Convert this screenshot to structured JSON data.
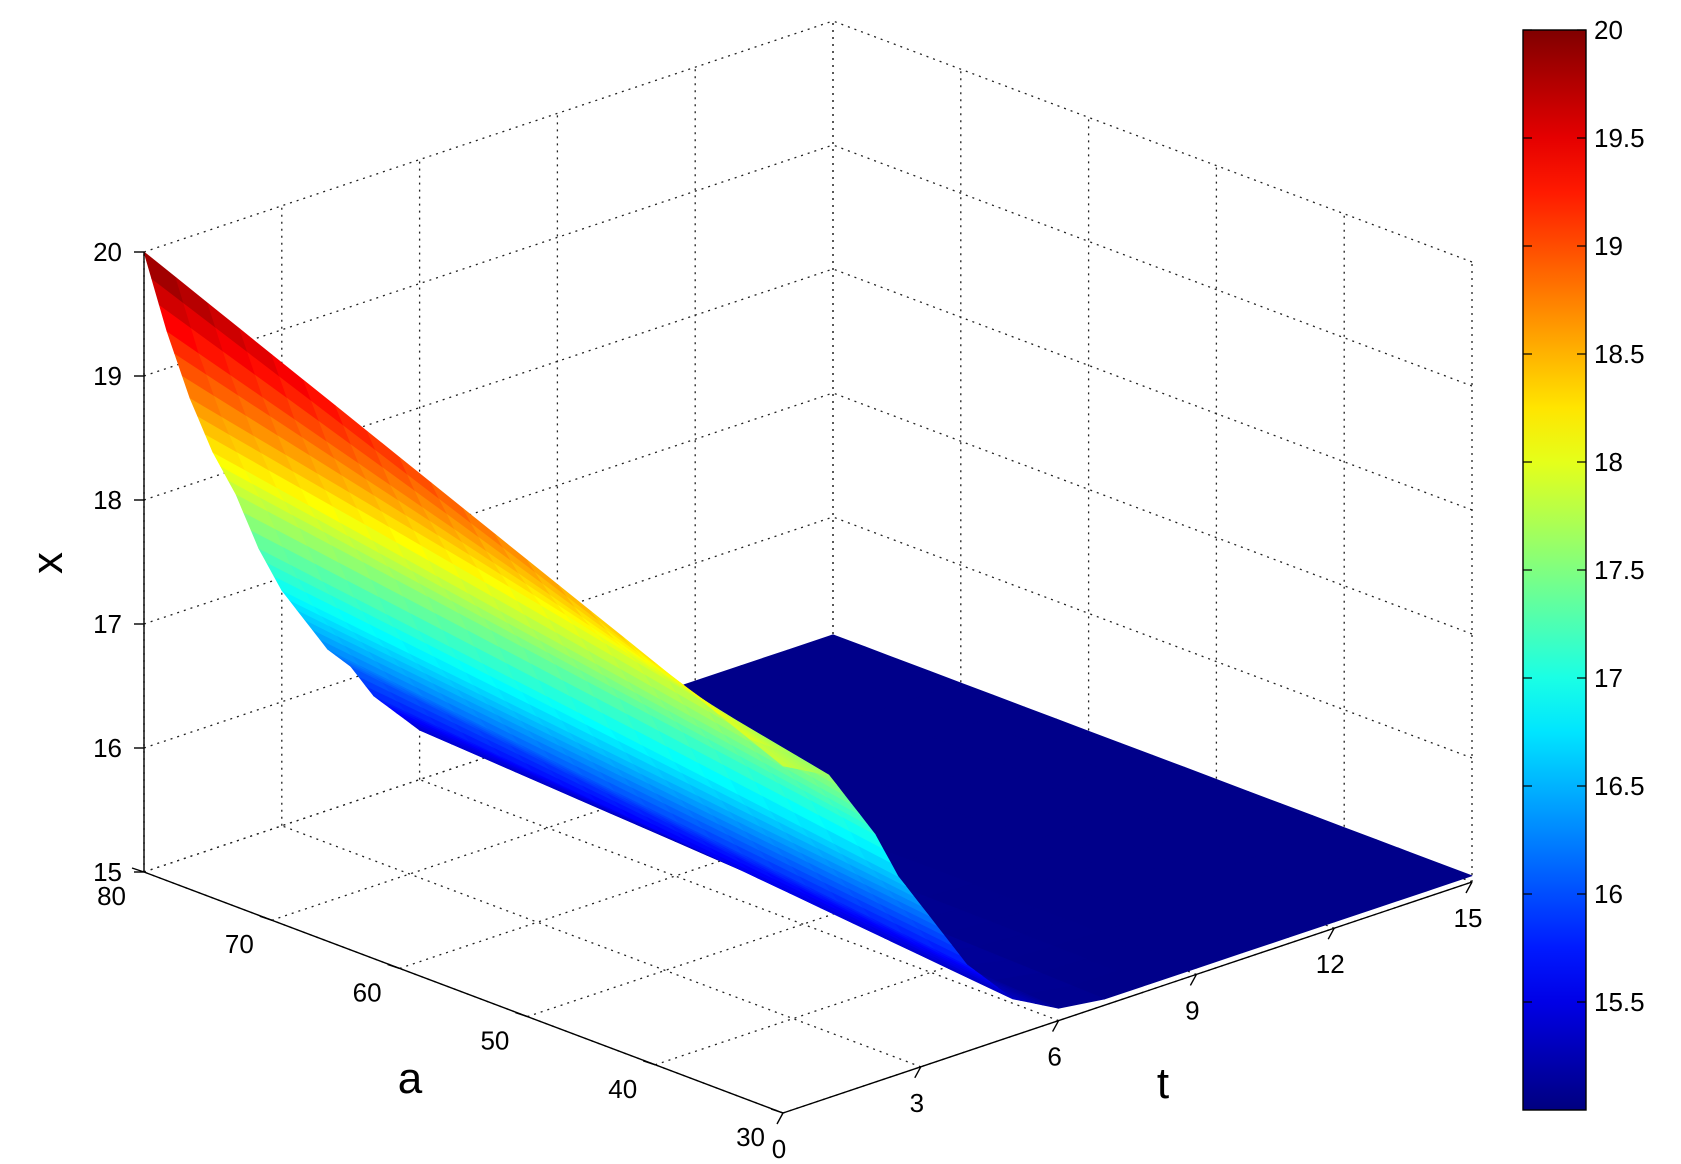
{
  "chart_data": {
    "type": "surface",
    "title": "",
    "xlabel": "a",
    "ylabel": "t",
    "zlabel": "x",
    "xlim": [
      30,
      80
    ],
    "ylim": [
      0,
      15
    ],
    "zlim": [
      15,
      20
    ],
    "x_ticks": [
      "30",
      "40",
      "50",
      "60",
      "70",
      "80"
    ],
    "y_ticks": [
      "0",
      "3",
      "6",
      "9",
      "12",
      "15"
    ],
    "z_ticks": [
      "15",
      "16",
      "17",
      "18",
      "19",
      "20"
    ],
    "grid": true,
    "colormap": "jet",
    "colorbar": {
      "range": [
        15.0,
        20.0
      ],
      "ticks": [
        "15.5",
        "16",
        "16.5",
        "17",
        "17.5",
        "18",
        "18.5",
        "19",
        "19.5",
        "20"
      ]
    },
    "surface": {
      "a_values": [
        30,
        80
      ],
      "t_values": [
        0,
        0.5,
        1,
        1.5,
        2,
        2.5,
        3,
        3.5,
        4,
        4.5,
        5,
        5.5,
        6,
        7,
        8,
        9,
        10,
        11,
        12,
        13,
        14,
        15
      ],
      "x_at_a80": [
        20.0,
        19.3,
        18.7,
        18.2,
        17.8,
        17.3,
        16.9,
        16.6,
        16.3,
        16.1,
        15.8,
        15.6,
        15.4,
        15.2,
        15.1,
        15.05,
        15.05,
        15.05,
        15.05,
        15.05,
        15.05,
        15.05
      ],
      "x_at_a30": [
        17.8,
        17.7,
        17.6,
        17.3,
        17.0,
        16.6,
        16.3,
        16.0,
        15.7,
        15.5,
        15.3,
        15.2,
        15.1,
        15.05,
        15.05,
        15.05,
        15.05,
        15.05,
        15.05,
        15.05,
        15.05,
        15.05
      ]
    }
  }
}
